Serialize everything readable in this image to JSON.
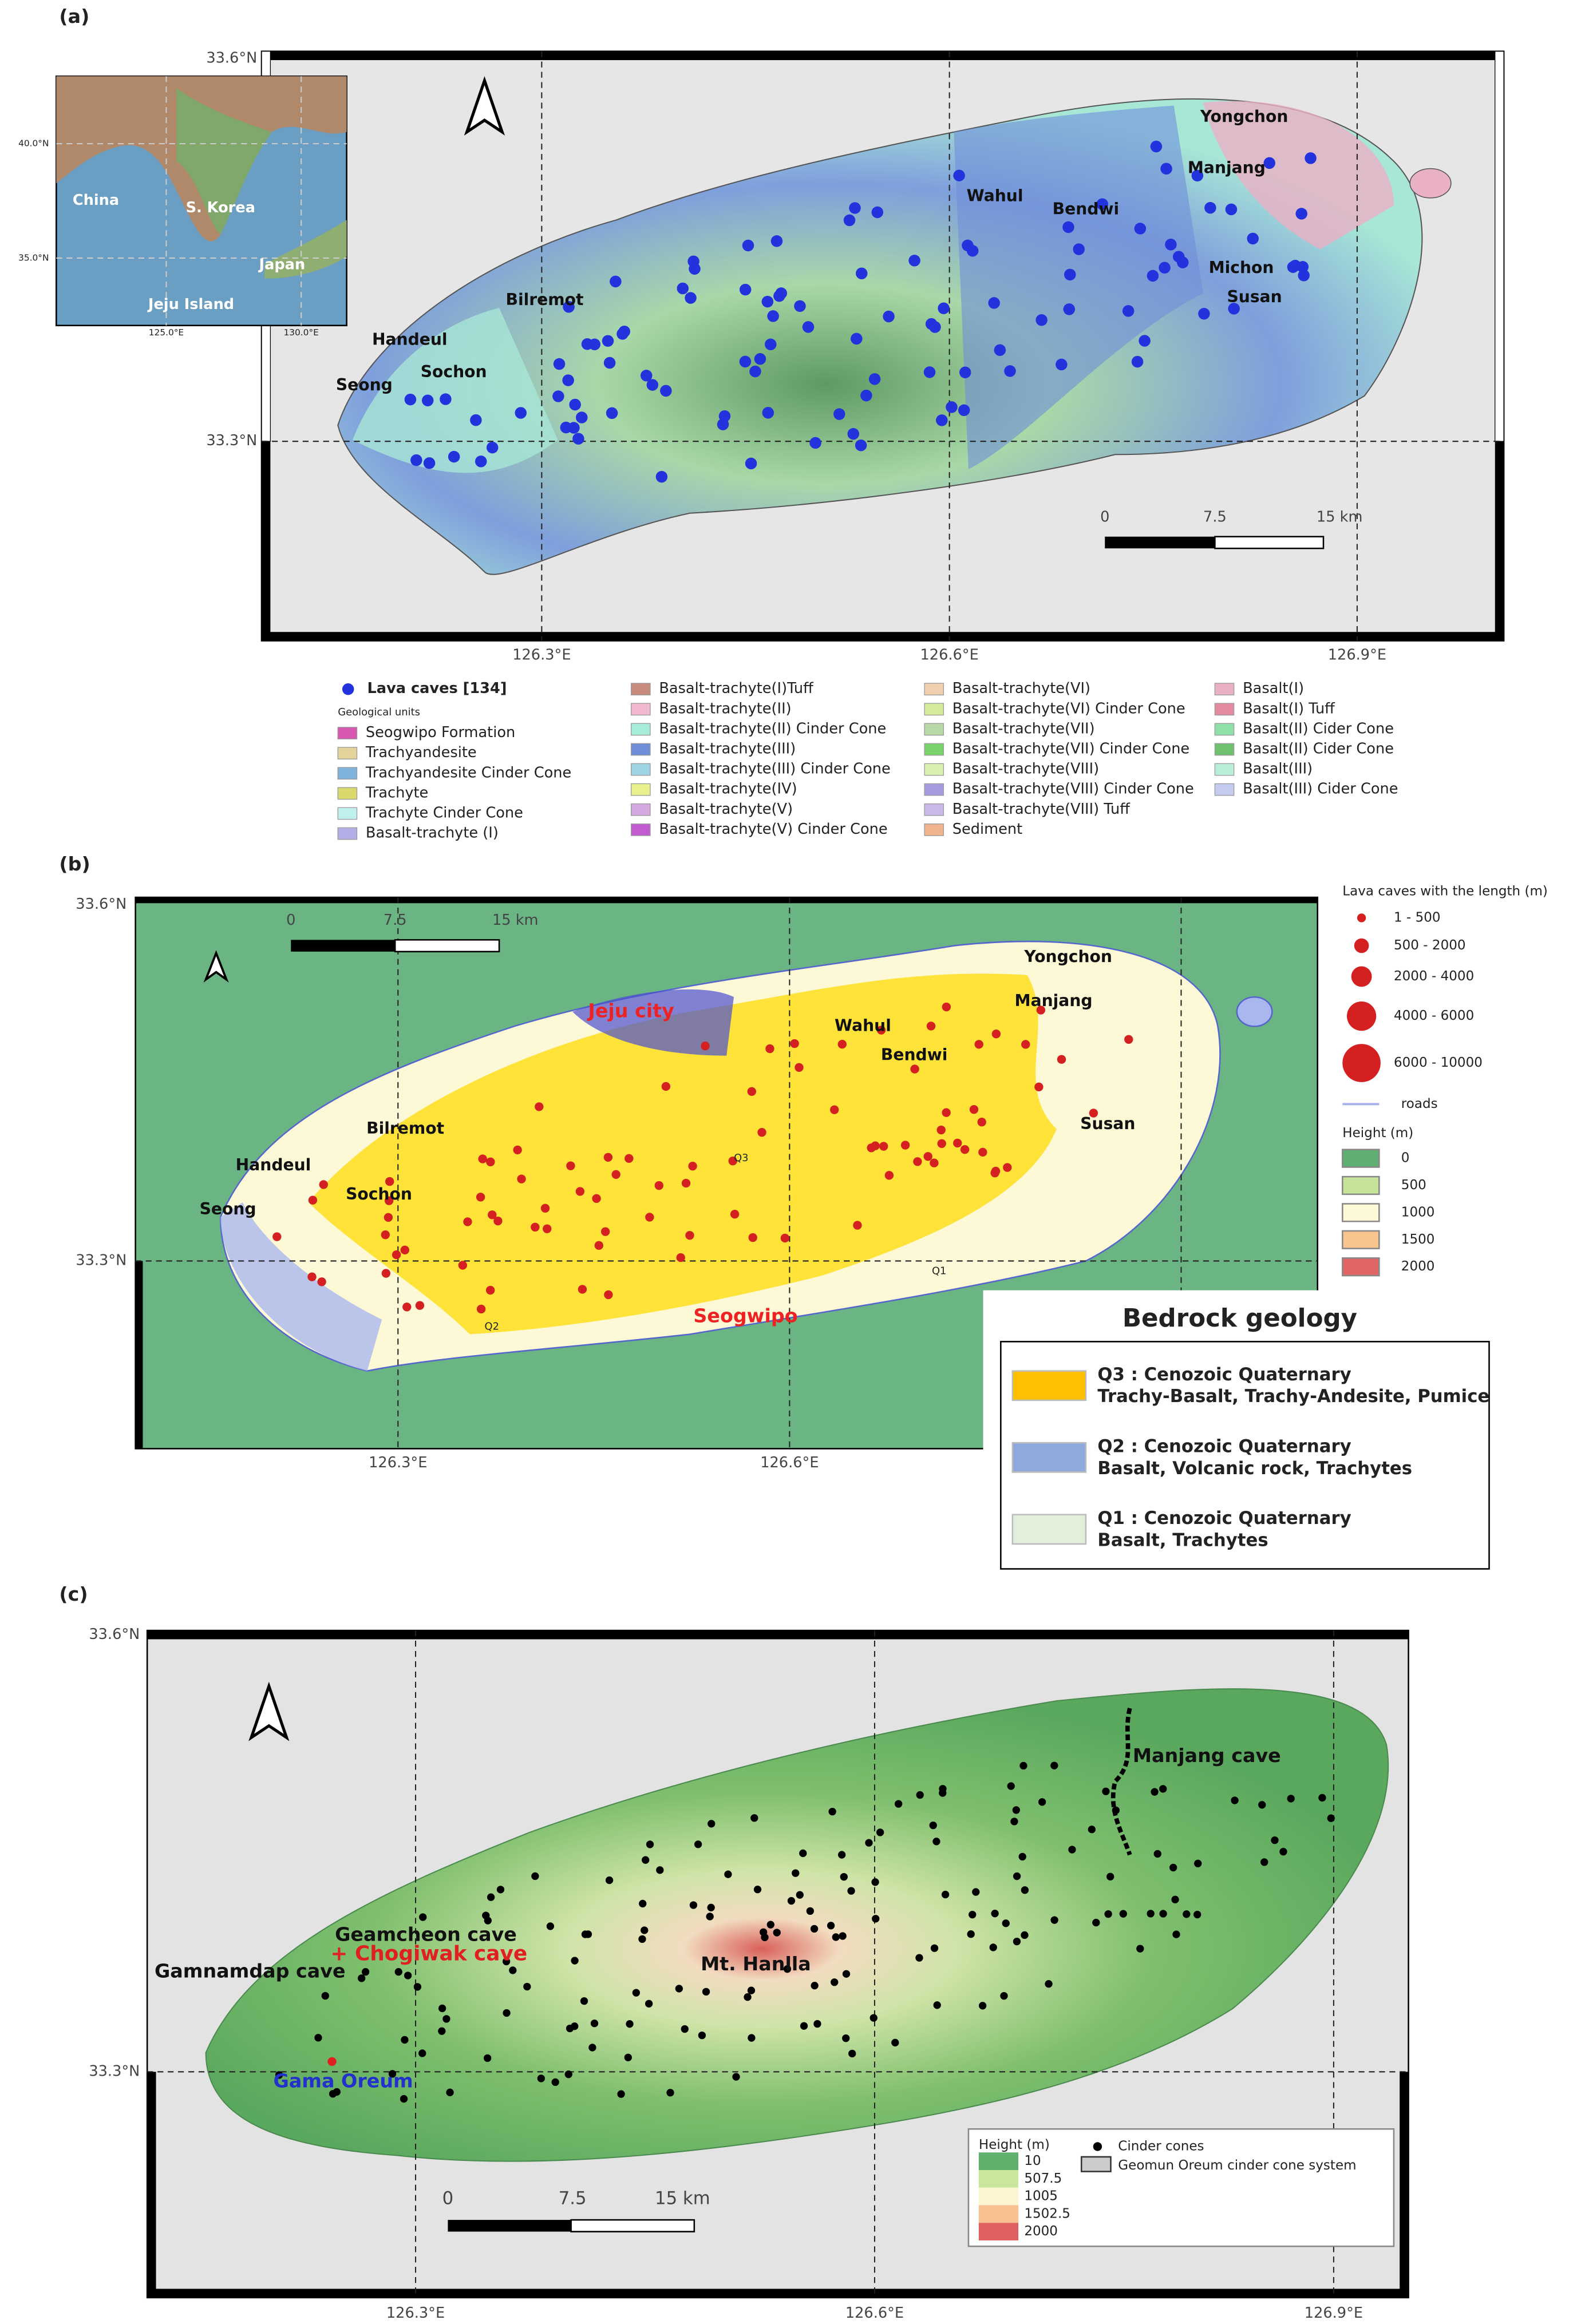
{
  "panel_a": {
    "label": "(a)",
    "lat_ticks": [
      "33.6°N",
      "33.3°N"
    ],
    "lon_ticks": [
      "126.3°E",
      "126.6°E",
      "126.9°E"
    ],
    "inset": {
      "lat_ticks": [
        "40.0°N",
        "35.0°N"
      ],
      "lon_ticks": [
        "125.0°E",
        "130.0°E"
      ],
      "places": [
        "China",
        "S. Korea",
        "Japan",
        "Jeju Island"
      ]
    },
    "places": [
      "Yongchon",
      "Manjang",
      "Wahul",
      "Bendwi",
      "Michon",
      "Susan",
      "Bilremot",
      "Handeul",
      "Sochon",
      "Seong"
    ],
    "scale": [
      "0",
      "7.5",
      "15 km"
    ],
    "legend": {
      "caves": "Lava caves [134]",
      "units_title": "Geological units",
      "units": [
        {
          "name": "Seogwipo Formation",
          "color": "#d957b0"
        },
        {
          "name": "Trachyandesite",
          "color": "#e3d39a"
        },
        {
          "name": "Trachyandesite Cinder Cone",
          "color": "#7fb2dc"
        },
        {
          "name": "Trachyte",
          "color": "#d8d96a"
        },
        {
          "name": "Trachyte Cinder Cone",
          "color": "#bff0ee"
        },
        {
          "name": "Basalt-trachyte (I)",
          "color": "#b3aee6"
        },
        {
          "name": "Basalt-trachyte(I)Tuff",
          "color": "#c98b7e"
        },
        {
          "name": "Basalt-trachyte(II)",
          "color": "#f1b8cf"
        },
        {
          "name": "Basalt-trachyte(II) Cinder Cone",
          "color": "#a6ecd8"
        },
        {
          "name": "Basalt-trachyte(III)",
          "color": "#6e8fd8"
        },
        {
          "name": "Basalt-trachyte(III) Cinder Cone",
          "color": "#9fd3e6"
        },
        {
          "name": "Basalt-trachyte(IV)",
          "color": "#e9f08e"
        },
        {
          "name": "Basalt-trachyte(V)",
          "color": "#d4a8e0"
        },
        {
          "name": "Basalt-trachyte(V) Cinder Cone",
          "color": "#c25ad0"
        },
        {
          "name": "Basalt-trachyte(VI)",
          "color": "#efcfae"
        },
        {
          "name": "Basalt-trachyte(VI) Cinder Cone",
          "color": "#d5ea9a"
        },
        {
          "name": "Basalt-trachyte(VII)",
          "color": "#b8d9a6"
        },
        {
          "name": "Basalt-trachyte(VII) Cinder Cone",
          "color": "#79d36a"
        },
        {
          "name": "Basalt-trachyte(VIII)",
          "color": "#d8f0b0"
        },
        {
          "name": "Basalt-trachyte(VIII) Cinder Cone",
          "color": "#a79be0"
        },
        {
          "name": "Basalt-trachyte(VIII) Tuff",
          "color": "#c9b8e8"
        },
        {
          "name": "Sediment",
          "color": "#f0b48e"
        },
        {
          "name": "Basalt(I)",
          "color": "#eab0c6"
        },
        {
          "name": "Basalt(I) Tuff",
          "color": "#e28aa0"
        },
        {
          "name": "Basalt(II) Cider Cone",
          "color": "#8fe0a8"
        },
        {
          "name": "Basalt(II) Cider Cone",
          "color": "#6fc06f"
        },
        {
          "name": "Basalt(III)",
          "color": "#b8efd8"
        },
        {
          "name": "Basalt(III) Cider Cone",
          "color": "#c3cbef"
        }
      ]
    }
  },
  "panel_b": {
    "label": "(b)",
    "lat_ticks": [
      "33.6°N",
      "33.3°N"
    ],
    "lon_ticks": [
      "126.3°E",
      "126.6°E"
    ],
    "scale": [
      "0",
      "7.5",
      "15 km"
    ],
    "places": [
      "Yongchon",
      "Manjang",
      "Jeju city",
      "Wahul",
      "Bendwi",
      "Susan",
      "Bilremot",
      "Handeul",
      "Sochon",
      "Seong",
      "Seogwipo"
    ],
    "map_labels": [
      "Q3",
      "Q2",
      "Q1"
    ],
    "legend": {
      "caves_title": "Lava caves with the length (m)",
      "sizes": [
        "1 - 500",
        "500 - 2000",
        "2000 - 4000",
        "4000 - 6000",
        "6000 - 10000"
      ],
      "roads": "roads",
      "height_title": "Height (m)",
      "heights": [
        {
          "label": "0",
          "color": "#5fae72"
        },
        {
          "label": "500",
          "color": "#c6e39a"
        },
        {
          "label": "1000",
          "color": "#fdf8d6"
        },
        {
          "label": "1500",
          "color": "#f8c48e"
        },
        {
          "label": "2000",
          "color": "#e06666"
        }
      ]
    },
    "bedrock": {
      "title": "Bedrock geology",
      "items": [
        {
          "code": "Q3 : Cenozoic Quaternary",
          "desc": "Trachy-Basalt, Trachy-Andesite, Pumice",
          "color": "#ffc000"
        },
        {
          "code": "Q2 : Cenozoic Quaternary",
          "desc": "Basalt, Volcanic rock, Trachytes",
          "color": "#8ea9db"
        },
        {
          "code": "Q1 : Cenozoic Quaternary",
          "desc": "Basalt, Trachytes",
          "color": "#e2efda"
        }
      ]
    }
  },
  "panel_c": {
    "label": "(c)",
    "lat_ticks": [
      "33.6°N",
      "33.3°N"
    ],
    "lon_ticks": [
      "126.3°E",
      "126.6°E",
      "126.9°E"
    ],
    "scale": [
      "0",
      "7.5",
      "15 km"
    ],
    "places": {
      "manjang": "Manjang cave",
      "geamcheon": "Geamcheon cave",
      "chogiwak": "+ Chogiwak cave",
      "gamnamdap": "Gamnamdap cave",
      "hanlla": "Mt. Hanlla",
      "gama": "Gama Oreum"
    },
    "legend": {
      "height_title": "Height (m)",
      "heights": [
        {
          "label": "10",
          "color": "#5fb06a"
        },
        {
          "label": "507.5",
          "color": "#c9e69d"
        },
        {
          "label": "1005",
          "color": "#fbf6cf"
        },
        {
          "label": "1502.5",
          "color": "#f6c08f"
        },
        {
          "label": "2000",
          "color": "#e06060"
        }
      ],
      "cones": "Cinder cones",
      "system": "Geomun Oreum cinder cone system"
    }
  }
}
